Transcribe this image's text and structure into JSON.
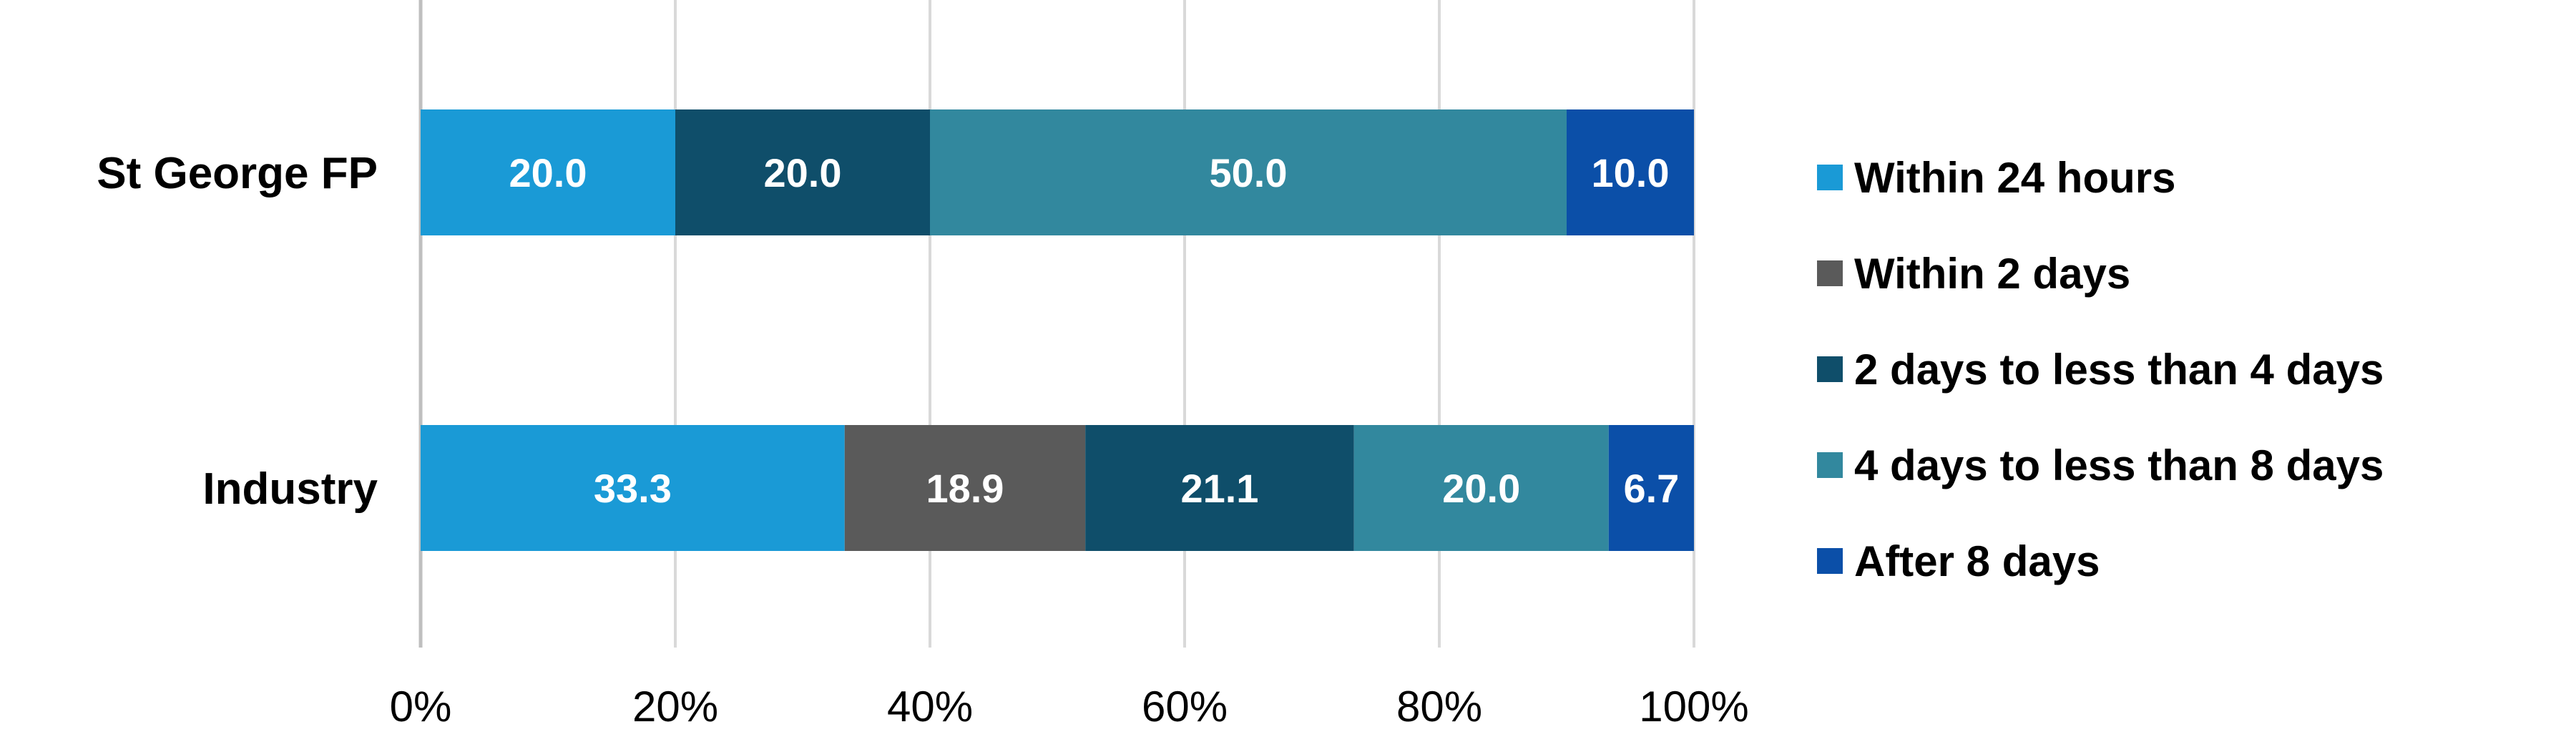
{
  "chart_data": {
    "type": "bar",
    "orientation": "horizontal",
    "stacked": "percent",
    "categories": [
      "St George FP",
      "Industry"
    ],
    "series": [
      {
        "name": "Within 24 hours",
        "color": "#1a9ad6",
        "values": [
          20.0,
          33.3
        ],
        "labels": [
          "20.0",
          "33.3"
        ]
      },
      {
        "name": "Within 2 days",
        "color": "#5a5a5a",
        "values": [
          0,
          18.9
        ],
        "labels": [
          "",
          "18.9"
        ]
      },
      {
        "name": "2 days to less than 4 days",
        "color": "#0f4e6a",
        "values": [
          20.0,
          21.1
        ],
        "labels": [
          "20.0",
          "21.1"
        ]
      },
      {
        "name": "4 days to less than 8 days",
        "color": "#32889e",
        "values": [
          50.0,
          20.0
        ],
        "labels": [
          "50.0",
          "20.0"
        ]
      },
      {
        "name": "After 8 days",
        "color": "#0b4fa8",
        "values": [
          10.0,
          6.7
        ],
        "labels": [
          "10.0",
          "6.7"
        ]
      }
    ],
    "x_ticks": [
      "0%",
      "20%",
      "40%",
      "60%",
      "80%",
      "100%"
    ],
    "xlim": [
      0,
      100
    ],
    "grid": true,
    "legend_position": "right",
    "title": "",
    "xlabel": "",
    "ylabel": ""
  }
}
